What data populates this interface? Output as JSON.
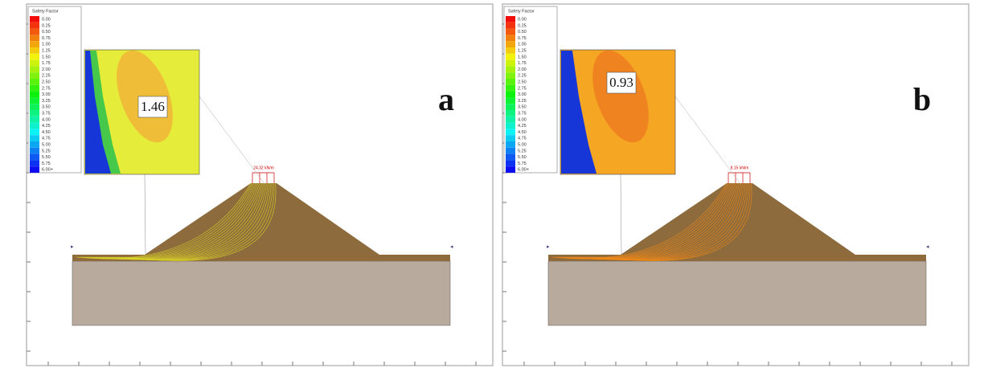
{
  "legend": {
    "title": "Safety Factor",
    "values": [
      "0.00",
      "0.25",
      "0.50",
      "0.75",
      "1.00",
      "1.25",
      "1.50",
      "1.75",
      "2.00",
      "2.25",
      "2.50",
      "2.75",
      "3.00",
      "3.25",
      "3.50",
      "3.75",
      "4.00",
      "4.25",
      "4.50",
      "4.75",
      "5.00",
      "5.25",
      "5.50",
      "5.75",
      "6.00+"
    ]
  },
  "panels": [
    {
      "label": "a",
      "factor": "1.46",
      "load": "24.32 kN/m"
    },
    {
      "label": "b",
      "factor": "0.93",
      "load": "8.15 kN/m"
    }
  ]
}
